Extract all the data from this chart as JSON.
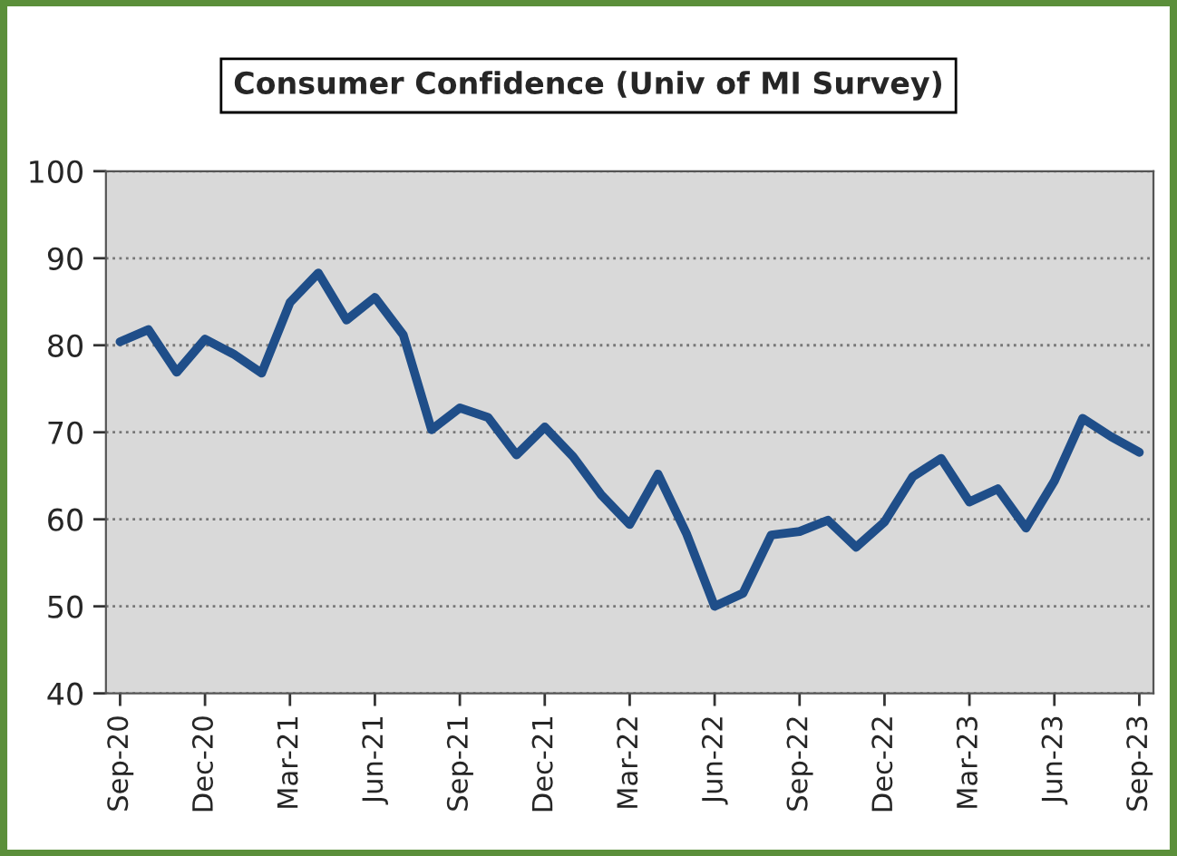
{
  "chart_data": {
    "type": "line",
    "title": "Consumer Confidence (Univ of MI Survey)",
    "categories": [
      "Sep-20",
      null,
      null,
      "Dec-20",
      null,
      null,
      "Mar-21",
      null,
      null,
      "Jun-21",
      null,
      null,
      "Sep-21",
      null,
      null,
      "Dec-21",
      null,
      null,
      "Mar-22",
      null,
      null,
      "Jun-22",
      null,
      null,
      "Sep-22",
      null,
      null,
      "Dec-22",
      null,
      null,
      "Mar-23",
      null,
      null,
      "Jun-23",
      null,
      null,
      "Sep-23"
    ],
    "series": [
      {
        "color": "#1f4e89",
        "values": [
          80.4,
          81.8,
          76.9,
          80.7,
          79.0,
          76.8,
          84.9,
          88.3,
          82.9,
          85.5,
          81.2,
          70.3,
          72.8,
          71.7,
          67.4,
          70.6,
          67.2,
          62.8,
          59.4,
          65.2,
          58.4,
          50.0,
          51.5,
          58.2,
          58.6,
          59.9,
          56.8,
          59.7,
          64.9,
          67.0,
          62.0,
          63.5,
          59.0,
          64.4,
          71.6,
          69.5,
          67.7
        ]
      }
    ],
    "ylim": [
      40,
      100
    ],
    "yticks": [
      40,
      50,
      60,
      70,
      80,
      90,
      100
    ],
    "grid": "y",
    "marker": "none",
    "line_style": "solid"
  }
}
